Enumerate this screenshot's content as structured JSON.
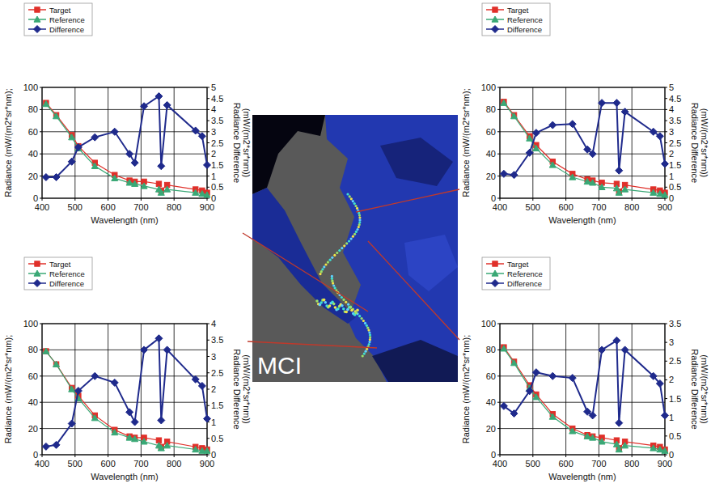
{
  "chart_data": [
    {
      "type": "line",
      "x_label": "Wavelength (nm)",
      "y_label": "Radiance (mW/(m2*sr*nm);",
      "y2_label": "Radiance Difference (mW/(m2*sr*nm))",
      "x": [
        412,
        443,
        490,
        510,
        560,
        620,
        665,
        681,
        709,
        754,
        761,
        779,
        865,
        885,
        900
      ],
      "xlim": [
        400,
        900
      ],
      "xticks": [
        400,
        500,
        600,
        700,
        800,
        900
      ],
      "ylim": [
        0,
        100
      ],
      "yticks": [
        0,
        20,
        40,
        60,
        80,
        100
      ],
      "y2lim": [
        0,
        5
      ],
      "y2ticks": [
        0,
        0.5,
        1,
        1.5,
        2,
        2.5,
        3,
        3.5,
        4,
        4.5,
        5
      ],
      "grid": true,
      "legend": "top-left",
      "series": [
        {
          "name": "Target",
          "color": "#e0302a",
          "marker": "square",
          "line_style": "solid",
          "values": [
            86,
            75,
            57,
            47,
            32,
            21,
            16,
            15,
            15,
            13,
            7,
            12,
            8,
            7,
            5
          ]
        },
        {
          "name": "Reference",
          "color": "#3aa876",
          "marker": "triangle",
          "line_style": "solid",
          "values": [
            85,
            74,
            55,
            45,
            29,
            18,
            14,
            13,
            11,
            8,
            5,
            8,
            5,
            4,
            3
          ]
        },
        {
          "name": "Difference",
          "color": "#1f2a8c",
          "marker": "diamond",
          "line_style": "solid",
          "axis": "y2",
          "values": [
            0.95,
            0.95,
            1.65,
            2.3,
            2.75,
            3.0,
            2.0,
            1.6,
            4.15,
            4.6,
            1.45,
            4.2,
            3.05,
            2.8,
            1.5
          ]
        }
      ]
    },
    {
      "type": "line",
      "x_label": "Wavelength (nm)",
      "y_label": "Radiance (mW/(m2*sr*nm);",
      "y2_label": "Radiance Difference (mW/(m2*sr*nm))",
      "x": [
        412,
        443,
        490,
        510,
        560,
        620,
        665,
        681,
        709,
        754,
        761,
        779,
        865,
        885,
        900
      ],
      "xlim": [
        400,
        900
      ],
      "xticks": [
        400,
        500,
        600,
        700,
        800,
        900
      ],
      "ylim": [
        0,
        100
      ],
      "yticks": [
        0,
        20,
        40,
        60,
        80,
        100
      ],
      "y2lim": [
        0,
        5
      ],
      "y2ticks": [
        0,
        0.5,
        1,
        1.5,
        2,
        2.5,
        3,
        3.5,
        4,
        4.5,
        5
      ],
      "grid": true,
      "legend": "top-left",
      "series": [
        {
          "name": "Target",
          "color": "#e0302a",
          "marker": "square",
          "line_style": "solid",
          "values": [
            87,
            75,
            56,
            48,
            33,
            22,
            17,
            16,
            14,
            13,
            6,
            12,
            8,
            7,
            5
          ]
        },
        {
          "name": "Reference",
          "color": "#3aa876",
          "marker": "triangle",
          "line_style": "solid",
          "values": [
            86,
            74,
            54,
            45,
            30,
            19,
            15,
            14,
            10,
            9,
            5,
            8,
            5,
            4,
            3
          ]
        },
        {
          "name": "Difference",
          "color": "#1f2a8c",
          "marker": "diamond",
          "line_style": "solid",
          "axis": "y2",
          "values": [
            1.1,
            1.05,
            2.05,
            2.95,
            3.3,
            3.35,
            2.2,
            2.0,
            4.3,
            4.3,
            1.25,
            3.9,
            3.0,
            2.8,
            1.55
          ]
        }
      ]
    },
    {
      "type": "line",
      "x_label": "Wavelength (nm)",
      "y_label": "Radiance (mW/(m2*sr*nm);",
      "y2_label": "Radiance Difference (mW/(m2*sr*nm))",
      "x": [
        412,
        443,
        490,
        510,
        560,
        620,
        665,
        681,
        709,
        754,
        761,
        779,
        865,
        885,
        900
      ],
      "xlim": [
        400,
        900
      ],
      "xticks": [
        400,
        500,
        600,
        700,
        800,
        900
      ],
      "ylim": [
        0,
        100
      ],
      "yticks": [
        0,
        20,
        40,
        60,
        80,
        100
      ],
      "y2lim": [
        0,
        4
      ],
      "y2ticks": [
        0,
        0.5,
        1,
        1.5,
        2,
        2.5,
        3,
        3.5,
        4
      ],
      "grid": true,
      "legend": "top-left",
      "series": [
        {
          "name": "Target",
          "color": "#e0302a",
          "marker": "square",
          "line_style": "solid",
          "values": [
            79,
            69,
            51,
            45,
            30,
            19,
            14,
            13,
            13,
            11,
            6,
            10,
            6,
            5,
            4
          ]
        },
        {
          "name": "Reference",
          "color": "#3aa876",
          "marker": "triangle",
          "line_style": "solid",
          "values": [
            79,
            69,
            50,
            43,
            28,
            17,
            13,
            12,
            10,
            7,
            5,
            7,
            4,
            3,
            3
          ]
        },
        {
          "name": "Difference",
          "color": "#1f2a8c",
          "marker": "diamond",
          "line_style": "solid",
          "axis": "y2",
          "values": [
            0.25,
            0.3,
            0.95,
            1.95,
            2.4,
            2.2,
            1.3,
            1.0,
            3.2,
            3.55,
            1.05,
            3.2,
            2.3,
            2.1,
            1.1
          ]
        }
      ]
    },
    {
      "type": "line",
      "x_label": "Wavelength (nm)",
      "y_label": "Radiance (mW/(m2*sr*nm);",
      "y2_label": "Radiance Difference (mW/(m2*sr*nm))",
      "x": [
        412,
        443,
        490,
        510,
        560,
        620,
        665,
        681,
        709,
        754,
        761,
        779,
        865,
        885,
        900
      ],
      "xlim": [
        400,
        900
      ],
      "xticks": [
        400,
        500,
        600,
        700,
        800,
        900
      ],
      "ylim": [
        0,
        100
      ],
      "yticks": [
        0,
        20,
        40,
        60,
        80,
        100
      ],
      "y2lim": [
        0,
        3.5
      ],
      "y2ticks": [
        0,
        0.5,
        1,
        1.5,
        2,
        2.5,
        3,
        3.5
      ],
      "grid": true,
      "legend": "top-left",
      "series": [
        {
          "name": "Target",
          "color": "#e0302a",
          "marker": "square",
          "line_style": "solid",
          "values": [
            82,
            71,
            53,
            46,
            31,
            20,
            15,
            14,
            13,
            11,
            5,
            10,
            7,
            6,
            4
          ]
        },
        {
          "name": "Reference",
          "color": "#3aa876",
          "marker": "triangle",
          "line_style": "solid",
          "values": [
            81,
            70,
            51,
            44,
            29,
            18,
            14,
            13,
            10,
            8,
            4,
            7,
            5,
            4,
            3
          ]
        },
        {
          "name": "Difference",
          "color": "#1f2a8c",
          "marker": "diamond",
          "line_style": "solid",
          "axis": "y2",
          "values": [
            1.3,
            1.1,
            1.7,
            2.2,
            2.1,
            2.05,
            1.15,
            1.05,
            2.8,
            3.05,
            0.85,
            2.8,
            2.1,
            1.9,
            1.05
          ]
        }
      ]
    }
  ],
  "map": {
    "label": "MCI"
  }
}
